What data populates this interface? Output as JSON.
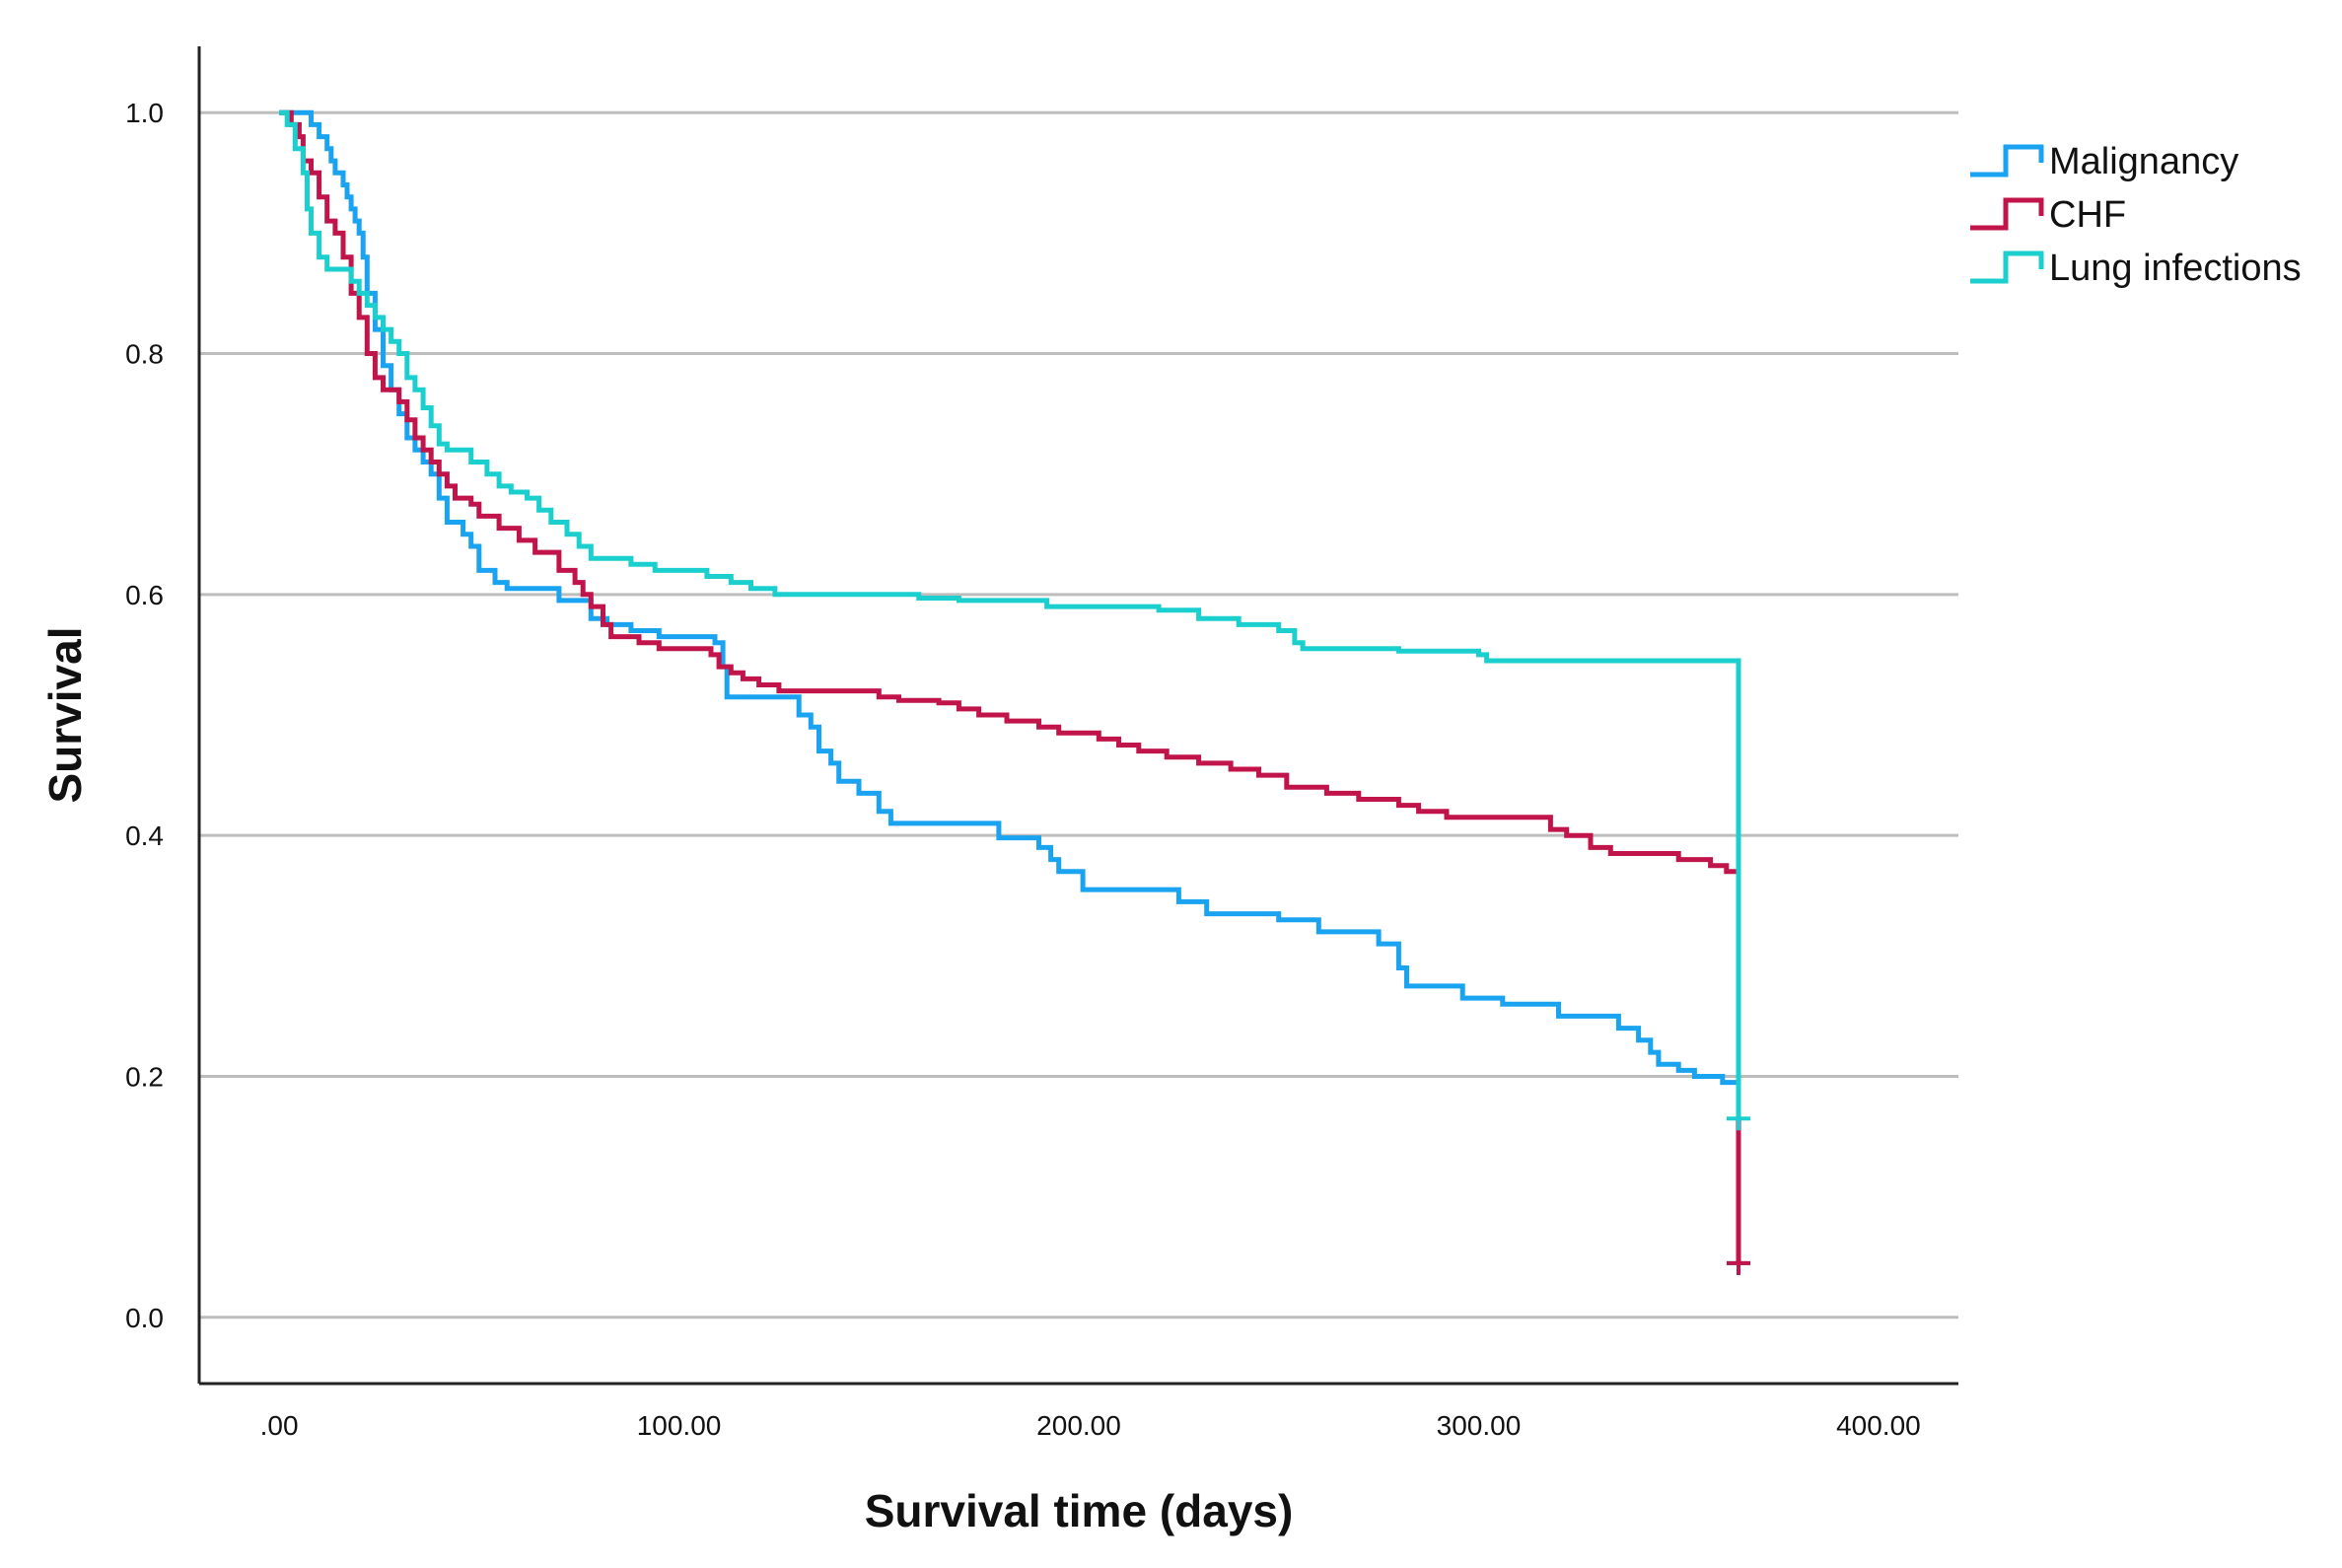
{
  "chart_data": {
    "type": "line",
    "subtype": "kaplan-meier-step",
    "title": "",
    "xlabel": "Survival time (days)",
    "ylabel": "Survival",
    "xlim": [
      -20,
      420
    ],
    "ylim": [
      -0.055,
      1.055
    ],
    "x_ticks": [
      {
        "value": 0,
        "label": ".00"
      },
      {
        "value": 100,
        "label": "100.00"
      },
      {
        "value": 200,
        "label": "200.00"
      },
      {
        "value": 300,
        "label": "300.00"
      },
      {
        "value": 400,
        "label": "400.00"
      }
    ],
    "y_ticks": [
      {
        "value": 0,
        "label": "0.0"
      },
      {
        "value": 0.2,
        "label": "0.2"
      },
      {
        "value": 0.4,
        "label": "0.4"
      },
      {
        "value": 0.6,
        "label": "0.6"
      },
      {
        "value": 0.8,
        "label": "0.8"
      },
      {
        "value": 1.0,
        "label": "1.0"
      }
    ],
    "grid": "horizontal",
    "legend_position": "top-right",
    "series": [
      {
        "name": "Malignancy",
        "color": "#1aa3f0",
        "censored": [
          [
            365,
            0.045
          ]
        ],
        "points": [
          [
            0,
            1.0
          ],
          [
            5,
            1.0
          ],
          [
            8,
            0.99
          ],
          [
            10,
            0.98
          ],
          [
            12,
            0.97
          ],
          [
            13,
            0.96
          ],
          [
            14,
            0.95
          ],
          [
            16,
            0.94
          ],
          [
            17,
            0.93
          ],
          [
            18,
            0.92
          ],
          [
            19,
            0.91
          ],
          [
            20,
            0.9
          ],
          [
            21,
            0.88
          ],
          [
            22,
            0.85
          ],
          [
            24,
            0.82
          ],
          [
            26,
            0.79
          ],
          [
            28,
            0.77
          ],
          [
            30,
            0.75
          ],
          [
            32,
            0.73
          ],
          [
            34,
            0.72
          ],
          [
            36,
            0.71
          ],
          [
            38,
            0.7
          ],
          [
            40,
            0.68
          ],
          [
            42,
            0.66
          ],
          [
            46,
            0.65
          ],
          [
            48,
            0.64
          ],
          [
            50,
            0.62
          ],
          [
            54,
            0.61
          ],
          [
            57,
            0.605
          ],
          [
            70,
            0.595
          ],
          [
            78,
            0.58
          ],
          [
            82,
            0.575
          ],
          [
            88,
            0.57
          ],
          [
            95,
            0.565
          ],
          [
            109,
            0.56
          ],
          [
            111,
            0.54
          ],
          [
            112,
            0.515
          ],
          [
            130,
            0.5
          ],
          [
            133,
            0.49
          ],
          [
            135,
            0.47
          ],
          [
            138,
            0.46
          ],
          [
            140,
            0.445
          ],
          [
            145,
            0.435
          ],
          [
            150,
            0.42
          ],
          [
            153,
            0.41
          ],
          [
            180,
            0.398
          ],
          [
            190,
            0.39
          ],
          [
            193,
            0.38
          ],
          [
            195,
            0.37
          ],
          [
            201,
            0.355
          ],
          [
            225,
            0.345
          ],
          [
            232,
            0.335
          ],
          [
            250,
            0.33
          ],
          [
            260,
            0.32
          ],
          [
            275,
            0.31
          ],
          [
            280,
            0.29
          ],
          [
            282,
            0.275
          ],
          [
            296,
            0.265
          ],
          [
            306,
            0.26
          ],
          [
            320,
            0.25
          ],
          [
            335,
            0.24
          ],
          [
            340,
            0.23
          ],
          [
            343,
            0.22
          ],
          [
            345,
            0.21
          ],
          [
            350,
            0.205
          ],
          [
            354,
            0.2
          ],
          [
            361,
            0.195
          ],
          [
            365,
            0.2
          ],
          [
            365,
            0.045
          ]
        ]
      },
      {
        "name": "CHF",
        "color": "#c0144a",
        "censored": [
          [
            365,
            0.045
          ]
        ],
        "points": [
          [
            0,
            1.0
          ],
          [
            3,
            0.99
          ],
          [
            5,
            0.98
          ],
          [
            6,
            0.96
          ],
          [
            8,
            0.95
          ],
          [
            10,
            0.93
          ],
          [
            12,
            0.91
          ],
          [
            14,
            0.9
          ],
          [
            16,
            0.88
          ],
          [
            18,
            0.85
          ],
          [
            20,
            0.83
          ],
          [
            22,
            0.8
          ],
          [
            24,
            0.78
          ],
          [
            26,
            0.77
          ],
          [
            30,
            0.76
          ],
          [
            32,
            0.745
          ],
          [
            34,
            0.73
          ],
          [
            36,
            0.72
          ],
          [
            38,
            0.71
          ],
          [
            40,
            0.7
          ],
          [
            42,
            0.69
          ],
          [
            44,
            0.68
          ],
          [
            48,
            0.675
          ],
          [
            50,
            0.665
          ],
          [
            55,
            0.655
          ],
          [
            60,
            0.645
          ],
          [
            64,
            0.635
          ],
          [
            70,
            0.62
          ],
          [
            74,
            0.61
          ],
          [
            76,
            0.6
          ],
          [
            78,
            0.59
          ],
          [
            81,
            0.575
          ],
          [
            83,
            0.565
          ],
          [
            90,
            0.56
          ],
          [
            95,
            0.555
          ],
          [
            108,
            0.55
          ],
          [
            110,
            0.54
          ],
          [
            113,
            0.535
          ],
          [
            116,
            0.53
          ],
          [
            120,
            0.525
          ],
          [
            125,
            0.52
          ],
          [
            150,
            0.515
          ],
          [
            155,
            0.512
          ],
          [
            165,
            0.51
          ],
          [
            170,
            0.505
          ],
          [
            175,
            0.5
          ],
          [
            182,
            0.495
          ],
          [
            190,
            0.49
          ],
          [
            195,
            0.485
          ],
          [
            205,
            0.48
          ],
          [
            210,
            0.475
          ],
          [
            215,
            0.47
          ],
          [
            222,
            0.465
          ],
          [
            230,
            0.46
          ],
          [
            238,
            0.455
          ],
          [
            245,
            0.45
          ],
          [
            252,
            0.44
          ],
          [
            262,
            0.435
          ],
          [
            270,
            0.43
          ],
          [
            280,
            0.425
          ],
          [
            285,
            0.42
          ],
          [
            292,
            0.415
          ],
          [
            318,
            0.405
          ],
          [
            322,
            0.4
          ],
          [
            328,
            0.39
          ],
          [
            333,
            0.385
          ],
          [
            350,
            0.38
          ],
          [
            358,
            0.375
          ],
          [
            362,
            0.37
          ],
          [
            365,
            0.36
          ],
          [
            365,
            0.045
          ]
        ]
      },
      {
        "name": "Lung infections",
        "color": "#1ccfcf",
        "censored": [
          [
            365,
            0.165
          ]
        ],
        "points": [
          [
            0,
            1.0
          ],
          [
            2,
            0.99
          ],
          [
            4,
            0.97
          ],
          [
            6,
            0.95
          ],
          [
            7,
            0.92
          ],
          [
            8,
            0.9
          ],
          [
            10,
            0.88
          ],
          [
            12,
            0.87
          ],
          [
            18,
            0.86
          ],
          [
            20,
            0.85
          ],
          [
            22,
            0.84
          ],
          [
            24,
            0.83
          ],
          [
            26,
            0.82
          ],
          [
            28,
            0.81
          ],
          [
            30,
            0.8
          ],
          [
            32,
            0.78
          ],
          [
            34,
            0.77
          ],
          [
            36,
            0.755
          ],
          [
            38,
            0.74
          ],
          [
            40,
            0.725
          ],
          [
            42,
            0.72
          ],
          [
            48,
            0.71
          ],
          [
            52,
            0.7
          ],
          [
            55,
            0.69
          ],
          [
            58,
            0.685
          ],
          [
            62,
            0.68
          ],
          [
            65,
            0.67
          ],
          [
            68,
            0.66
          ],
          [
            72,
            0.65
          ],
          [
            75,
            0.64
          ],
          [
            78,
            0.63
          ],
          [
            88,
            0.625
          ],
          [
            94,
            0.62
          ],
          [
            107,
            0.615
          ],
          [
            113,
            0.61
          ],
          [
            118,
            0.605
          ],
          [
            124,
            0.6
          ],
          [
            160,
            0.597
          ],
          [
            170,
            0.595
          ],
          [
            192,
            0.59
          ],
          [
            220,
            0.587
          ],
          [
            230,
            0.58
          ],
          [
            240,
            0.575
          ],
          [
            250,
            0.57
          ],
          [
            254,
            0.56
          ],
          [
            256,
            0.555
          ],
          [
            280,
            0.553
          ],
          [
            300,
            0.55
          ],
          [
            302,
            0.545
          ],
          [
            365,
            0.545
          ],
          [
            365,
            0.165
          ]
        ]
      }
    ]
  }
}
